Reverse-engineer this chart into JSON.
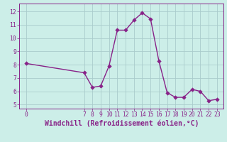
{
  "x": [
    0,
    7,
    8,
    9,
    10,
    11,
    12,
    13,
    14,
    15,
    16,
    17,
    18,
    19,
    20,
    21,
    22,
    23
  ],
  "y": [
    8.1,
    7.4,
    6.3,
    6.4,
    7.9,
    10.6,
    10.6,
    11.35,
    11.9,
    11.45,
    8.3,
    5.9,
    5.55,
    5.55,
    6.15,
    6.0,
    5.3,
    5.4
  ],
  "line_color": "#882288",
  "marker_color": "#882288",
  "bg_color": "#cceee8",
  "grid_color": "#aacccc",
  "xlabel": "Windchill (Refroidissement éolien,°C)",
  "xlabel_color": "#882288",
  "xticks": [
    0,
    7,
    8,
    9,
    10,
    11,
    12,
    13,
    14,
    15,
    16,
    17,
    18,
    19,
    20,
    21,
    22,
    23
  ],
  "yticks": [
    5,
    6,
    7,
    8,
    9,
    10,
    11,
    12
  ],
  "ylim": [
    4.7,
    12.6
  ],
  "xlim": [
    -0.8,
    23.8
  ],
  "tick_color": "#882288",
  "tick_fontsize": 5.8,
  "xlabel_fontsize": 7.0,
  "linewidth": 1.0,
  "markersize": 2.8
}
